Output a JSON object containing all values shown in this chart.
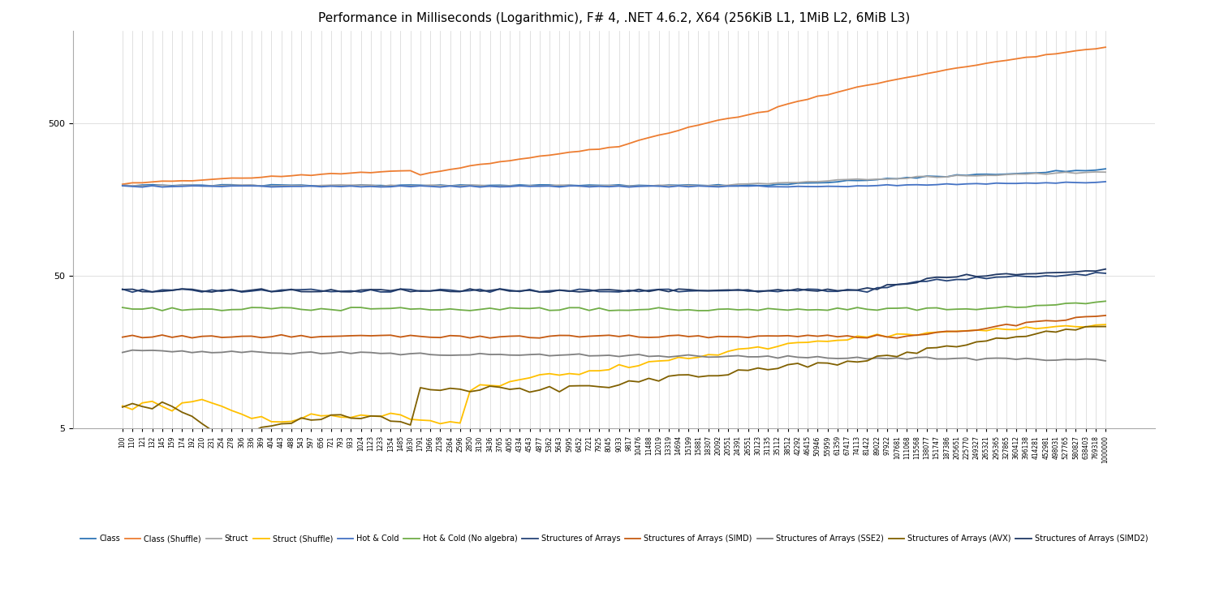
{
  "title": "Performance in Milliseconds (Logarithmic), F# 4, .NET 4.6.2, X64 (256KiB L1, 1MiB L2, 6MiB L3)",
  "series_names": [
    "Class",
    "Class (Shuffle)",
    "Struct",
    "Struct (Shuffle)",
    "Hot & Cold",
    "Hot & Cold (No algebra)",
    "Structures of Arrays",
    "Structures of Arrays (SIMD)",
    "Structures of Arrays (SSE2)",
    "Structures of Arrays (AVX)",
    "Structures of Arrays (SIMD2)"
  ],
  "series_colors": [
    "#2E75B6",
    "#ED7D31",
    "#A5A5A5",
    "#FFC000",
    "#4472C4",
    "#70AD47",
    "#264478",
    "#C55A11",
    "#808080",
    "#806000",
    "#203864"
  ],
  "background_color": "#FFFFFF",
  "grid_color": "#D3D3D3",
  "title_fontsize": 11,
  "ylim": [
    5,
    2000
  ],
  "yticks": [
    5,
    50,
    500
  ],
  "n_points": 100,
  "x_labels": [
    "100",
    "110",
    "121",
    "132",
    "145",
    "159",
    "174",
    "192",
    "210",
    "231",
    "254",
    "278",
    "306",
    "336",
    "369",
    "404",
    "443",
    "488",
    "543",
    "597",
    "656",
    "721",
    "793",
    "933",
    "1024",
    "1123",
    "1233",
    "1354",
    "1485",
    "1630",
    "1791",
    "1966",
    "2158",
    "2364",
    "2596",
    "2850",
    "3130",
    "3436",
    "3765",
    "4065",
    "4334",
    "4543",
    "4877",
    "5362",
    "5643",
    "5995",
    "6452",
    "7221",
    "7925",
    "8045",
    "9033",
    "9817",
    "10476",
    "11488",
    "12019",
    "13319",
    "14694",
    "15199",
    "15881",
    "18307",
    "20092",
    "20551",
    "24391",
    "26551",
    "30123",
    "31135",
    "35112",
    "38512",
    "42292",
    "46415",
    "50946",
    "55959",
    "61359",
    "67417",
    "74113",
    "81422",
    "89022",
    "97922",
    "107681",
    "111068",
    "115568",
    "138077",
    "151747",
    "187386",
    "205651",
    "225770",
    "249327",
    "265321",
    "295365",
    "327865",
    "360412",
    "396138",
    "414281",
    "452981",
    "498031",
    "527765",
    "580827",
    "638403",
    "769318",
    "1000000"
  ]
}
